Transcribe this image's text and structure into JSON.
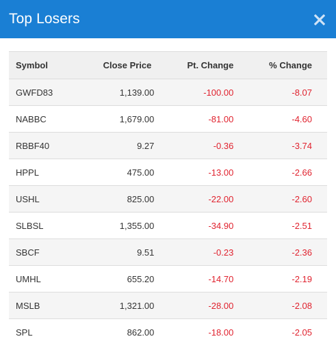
{
  "modal": {
    "title": "Top Losers",
    "close_icon": "close-icon"
  },
  "table": {
    "headers": [
      "Symbol",
      "Close Price",
      "Pt. Change",
      "% Change"
    ],
    "rows": [
      {
        "symbol": "GWFD83",
        "close": "1,139.00",
        "pt": "-100.00",
        "pct": "-8.07"
      },
      {
        "symbol": "NABBC",
        "close": "1,679.00",
        "pt": "-81.00",
        "pct": "-4.60"
      },
      {
        "symbol": "RBBF40",
        "close": "9.27",
        "pt": "-0.36",
        "pct": "-3.74"
      },
      {
        "symbol": "HPPL",
        "close": "475.00",
        "pt": "-13.00",
        "pct": "-2.66"
      },
      {
        "symbol": "USHL",
        "close": "825.00",
        "pt": "-22.00",
        "pct": "-2.60"
      },
      {
        "symbol": "SLBSL",
        "close": "1,355.00",
        "pt": "-34.90",
        "pct": "-2.51"
      },
      {
        "symbol": "SBCF",
        "close": "9.51",
        "pt": "-0.23",
        "pct": "-2.36"
      },
      {
        "symbol": "UMHL",
        "close": "655.20",
        "pt": "-14.70",
        "pct": "-2.19"
      },
      {
        "symbol": "MSLB",
        "close": "1,321.00",
        "pt": "-28.00",
        "pct": "-2.08"
      },
      {
        "symbol": "SPL",
        "close": "862.00",
        "pt": "-18.00",
        "pct": "-2.05"
      }
    ]
  },
  "colors": {
    "header_bg": "#1a7fd4",
    "negative": "#e0222e",
    "row_alt": "#f5f5f5"
  }
}
